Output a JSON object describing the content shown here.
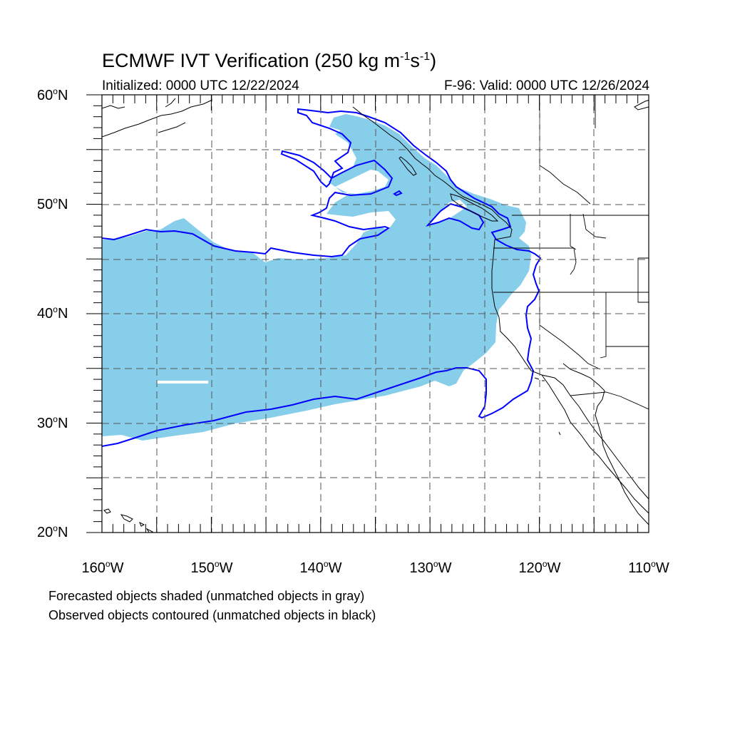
{
  "title": {
    "main": "ECMWF IVT Verification (250 kg m",
    "sup1": "-1",
    "mid": "s",
    "sup2": "-1",
    "end": ")"
  },
  "subtitle": {
    "left": "Initialized: 0000 UTC 12/22/2024",
    "right": "F-96: Valid: 0000 UTC 12/26/2024"
  },
  "lat_labels": [
    {
      "num": "60",
      "hem": "N"
    },
    {
      "num": "50",
      "hem": "N"
    },
    {
      "num": "40",
      "hem": "N"
    },
    {
      "num": "30",
      "hem": "N"
    },
    {
      "num": "20",
      "hem": "N"
    }
  ],
  "lon_labels": [
    {
      "num": "160",
      "hem": "W"
    },
    {
      "num": "150",
      "hem": "W"
    },
    {
      "num": "140",
      "hem": "W"
    },
    {
      "num": "130",
      "hem": "W"
    },
    {
      "num": "120",
      "hem": "W"
    },
    {
      "num": "110",
      "hem": "W"
    }
  ],
  "notes": {
    "line1": "Forecasted objects shaded (unmatched objects in gray)",
    "line2": "Observed objects contoured (unmatched objects in black)"
  },
  "colors": {
    "forecast_fill": "#87ceeb",
    "observed_contour": "#0000ff",
    "coastline": "#000000",
    "grid": "#4d4d4d"
  },
  "map_extent": {
    "lon_min": -160,
    "lon_max": -110,
    "lat_min": 20,
    "lat_max": 60
  }
}
